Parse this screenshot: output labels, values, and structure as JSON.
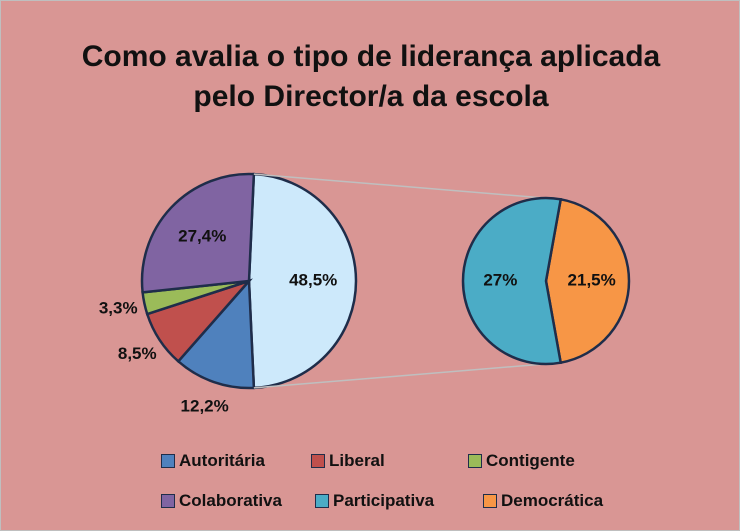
{
  "chart_data": {
    "type": "pie-of-pie",
    "title": "Como avalia o tipo de liderança aplicada pelo Director/a da escola",
    "categories": [
      "Autoritária",
      "Liberal",
      "Contigente",
      "Colaborativa",
      null
    ],
    "values": [
      12.2,
      8.5,
      3.3,
      27.4,
      48.5
    ],
    "value_labels": [
      "12,2%",
      "8,5%",
      "3,3%",
      "27,4%",
      "48,5%"
    ],
    "colors": [
      "#4f81bd",
      "#c0504d",
      "#9bbb59",
      "#8064a2",
      "#cde9fb"
    ],
    "secondary": {
      "categories": [
        "Participativa",
        "Democrática"
      ],
      "values": [
        27,
        21.5
      ],
      "value_labels": [
        "27%",
        "21,5%"
      ],
      "colors": [
        "#4bacc6",
        "#f79646"
      ]
    }
  }
}
